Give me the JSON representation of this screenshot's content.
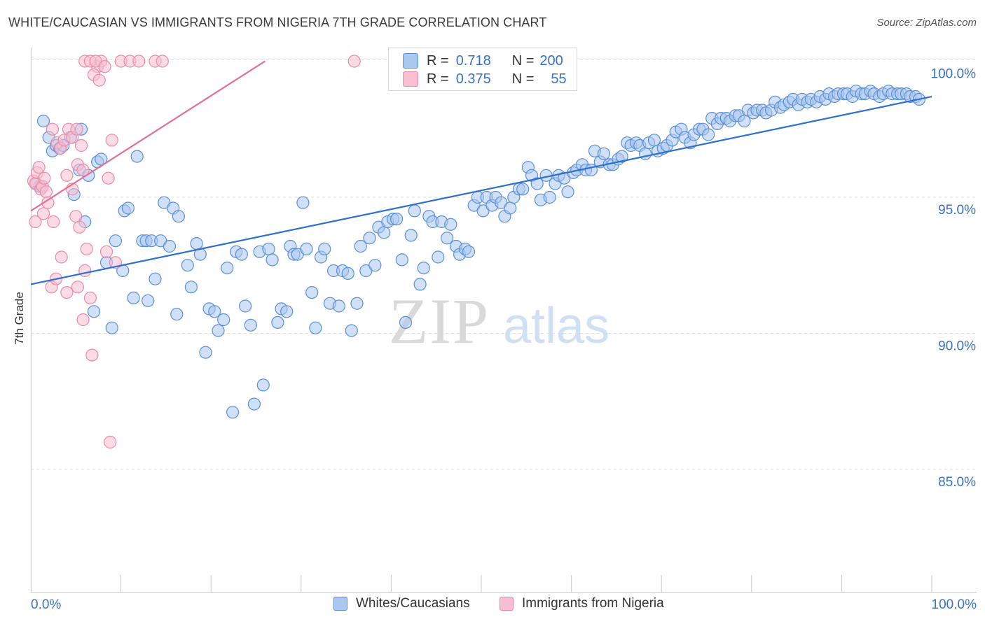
{
  "header": {
    "title": "WHITE/CAUCASIAN VS IMMIGRANTS FROM NIGERIA 7TH GRADE CORRELATION CHART",
    "source": "Source: ZipAtlas.com"
  },
  "watermark": {
    "zip": "ZIP",
    "atlas": "atlas"
  },
  "legend": {
    "r_label": "R =",
    "n_label": "N =",
    "series": [
      {
        "name": "Whites/Caucasians",
        "r": "0.718",
        "n": "200",
        "color": "#a9c7ef",
        "stroke": "#5a8fd8"
      },
      {
        "name": "Immigrants from Nigeria",
        "r": "0.375",
        "n": "55",
        "color": "#f8bfd0",
        "stroke": "#e98aa8"
      }
    ]
  },
  "chart_data": {
    "type": "scatter",
    "title": "WHITE/CAUCASIAN VS IMMIGRANTS FROM NIGERIA 7TH GRADE CORRELATION CHART",
    "xlabel": "",
    "ylabel": "7th Grade",
    "xlim": [
      0,
      100
    ],
    "ylim": [
      80.5,
      100.5
    ],
    "x_tick_labels": [
      "0.0%",
      "100.0%"
    ],
    "y_ticks": [
      {
        "value": 100,
        "label": "100.0%"
      },
      {
        "value": 95,
        "label": "95.0%"
      },
      {
        "value": 90,
        "label": "90.0%"
      },
      {
        "value": 85,
        "label": "85.0%"
      }
    ],
    "grid": true,
    "legend_position": "top-center",
    "series": [
      {
        "name": "Whites/Caucasians",
        "color": "#a9c7ef",
        "stroke": "#5a8fd8",
        "trend": {
          "x": [
            0,
            100
          ],
          "y": [
            91.8,
            98.7
          ],
          "color": "#2f6fce"
        },
        "points": [
          [
            1.4,
            97.8
          ],
          [
            2.0,
            97.2
          ],
          [
            2.4,
            96.7
          ],
          [
            2.8,
            96.9
          ],
          [
            3.2,
            96.8
          ],
          [
            3.6,
            96.9
          ],
          [
            4.4,
            97.2
          ],
          [
            5.6,
            97.5
          ],
          [
            4.8,
            95.1
          ],
          [
            5.4,
            96.0
          ],
          [
            6.4,
            95.8
          ],
          [
            7.4,
            96.3
          ],
          [
            7.8,
            96.4
          ],
          [
            11.8,
            96.5
          ],
          [
            6.0,
            94.1
          ],
          [
            8.4,
            92.6
          ],
          [
            9.4,
            93.4
          ],
          [
            10.4,
            94.5
          ],
          [
            10.8,
            94.6
          ],
          [
            10.2,
            92.3
          ],
          [
            11.4,
            91.3
          ],
          [
            9.0,
            90.2
          ],
          [
            12.4,
            93.4
          ],
          [
            12.8,
            93.4
          ],
          [
            13.4,
            93.4
          ],
          [
            13.8,
            92.0
          ],
          [
            14.4,
            93.4
          ],
          [
            14.8,
            94.8
          ],
          [
            15.4,
            93.2
          ],
          [
            15.8,
            94.6
          ],
          [
            16.4,
            94.3
          ],
          [
            16.2,
            90.7
          ],
          [
            17.4,
            92.5
          ],
          [
            17.8,
            91.7
          ],
          [
            18.4,
            93.3
          ],
          [
            18.8,
            92.9
          ],
          [
            19.4,
            89.3
          ],
          [
            19.8,
            90.9
          ],
          [
            20.4,
            90.8
          ],
          [
            20.8,
            90.1
          ],
          [
            21.4,
            90.5
          ],
          [
            21.8,
            92.4
          ],
          [
            22.4,
            87.1
          ],
          [
            22.8,
            93.0
          ],
          [
            23.4,
            92.9
          ],
          [
            23.8,
            91.0
          ],
          [
            24.4,
            90.3
          ],
          [
            24.8,
            87.4
          ],
          [
            25.4,
            93.0
          ],
          [
            25.8,
            88.1
          ],
          [
            26.4,
            93.1
          ],
          [
            26.8,
            92.7
          ],
          [
            27.4,
            90.4
          ],
          [
            27.8,
            90.9
          ],
          [
            28.4,
            90.8
          ],
          [
            28.8,
            93.2
          ],
          [
            29.2,
            92.9
          ],
          [
            29.6,
            92.9
          ],
          [
            30.2,
            94.8
          ],
          [
            30.6,
            93.1
          ],
          [
            31.2,
            91.5
          ],
          [
            31.6,
            90.2
          ],
          [
            32.2,
            92.8
          ],
          [
            32.6,
            93.1
          ],
          [
            33.2,
            91.1
          ],
          [
            33.6,
            92.3
          ],
          [
            34.2,
            91.0
          ],
          [
            34.6,
            92.3
          ],
          [
            35.2,
            92.2
          ],
          [
            35.6,
            90.1
          ],
          [
            36.2,
            91.1
          ],
          [
            36.6,
            93.2
          ],
          [
            37.2,
            92.3
          ],
          [
            37.6,
            93.5
          ],
          [
            38.2,
            92.5
          ],
          [
            38.6,
            93.9
          ],
          [
            39.2,
            93.7
          ],
          [
            39.6,
            94.1
          ],
          [
            40.2,
            94.2
          ],
          [
            40.6,
            94.2
          ],
          [
            41.2,
            92.7
          ],
          [
            41.6,
            90.4
          ],
          [
            42.2,
            93.6
          ],
          [
            42.6,
            94.5
          ],
          [
            43.2,
            91.8
          ],
          [
            43.6,
            92.4
          ],
          [
            44.2,
            94.3
          ],
          [
            44.6,
            94.1
          ],
          [
            45.2,
            92.8
          ],
          [
            45.6,
            94.1
          ],
          [
            46.2,
            93.5
          ],
          [
            46.6,
            94.0
          ],
          [
            47.2,
            93.2
          ],
          [
            47.6,
            92.9
          ],
          [
            48.2,
            93.1
          ],
          [
            48.6,
            93.0
          ],
          [
            49.2,
            94.7
          ],
          [
            49.6,
            95.0
          ],
          [
            50.2,
            94.5
          ],
          [
            50.6,
            95.0
          ],
          [
            51.2,
            94.7
          ],
          [
            51.6,
            95.0
          ],
          [
            52.2,
            94.8
          ],
          [
            52.6,
            94.3
          ],
          [
            53.2,
            94.6
          ],
          [
            53.6,
            95.0
          ],
          [
            54.2,
            95.3
          ],
          [
            54.6,
            95.3
          ],
          [
            55.2,
            96.1
          ],
          [
            55.6,
            95.8
          ],
          [
            56.2,
            95.5
          ],
          [
            56.6,
            94.9
          ],
          [
            57.2,
            95.8
          ],
          [
            57.6,
            95.0
          ],
          [
            58.2,
            95.5
          ],
          [
            58.6,
            95.8
          ],
          [
            59.2,
            95.7
          ],
          [
            59.6,
            95.2
          ],
          [
            60.2,
            95.9
          ],
          [
            60.6,
            96.0
          ],
          [
            61.2,
            96.2
          ],
          [
            61.6,
            96.0
          ],
          [
            62.2,
            96.0
          ],
          [
            62.6,
            96.7
          ],
          [
            63.2,
            96.3
          ],
          [
            63.6,
            96.6
          ],
          [
            64.2,
            96.2
          ],
          [
            64.6,
            96.2
          ],
          [
            65.2,
            96.4
          ],
          [
            65.6,
            96.5
          ],
          [
            66.2,
            97.0
          ],
          [
            66.6,
            96.9
          ],
          [
            67.2,
            97.0
          ],
          [
            67.6,
            96.9
          ],
          [
            68.2,
            96.6
          ],
          [
            68.6,
            97.0
          ],
          [
            69.2,
            97.1
          ],
          [
            69.6,
            96.7
          ],
          [
            70.2,
            96.8
          ],
          [
            70.6,
            96.9
          ],
          [
            71.2,
            97.1
          ],
          [
            71.6,
            97.4
          ],
          [
            72.2,
            97.5
          ],
          [
            72.6,
            97.2
          ],
          [
            73.2,
            97.0
          ],
          [
            73.6,
            97.3
          ],
          [
            74.2,
            97.5
          ],
          [
            74.6,
            97.5
          ],
          [
            75.2,
            97.3
          ],
          [
            75.6,
            97.9
          ],
          [
            76.2,
            97.7
          ],
          [
            76.6,
            97.9
          ],
          [
            77.2,
            97.9
          ],
          [
            77.6,
            97.8
          ],
          [
            78.2,
            98.0
          ],
          [
            78.6,
            98.0
          ],
          [
            79.2,
            97.8
          ],
          [
            79.6,
            98.2
          ],
          [
            80.2,
            98.1
          ],
          [
            80.6,
            98.2
          ],
          [
            81.2,
            98.2
          ],
          [
            81.6,
            98.1
          ],
          [
            82.2,
            98.2
          ],
          [
            82.6,
            98.5
          ],
          [
            83.2,
            98.3
          ],
          [
            83.6,
            98.4
          ],
          [
            84.2,
            98.5
          ],
          [
            84.6,
            98.6
          ],
          [
            85.2,
            98.4
          ],
          [
            85.6,
            98.6
          ],
          [
            86.2,
            98.5
          ],
          [
            86.6,
            98.6
          ],
          [
            87.2,
            98.5
          ],
          [
            87.6,
            98.7
          ],
          [
            88.2,
            98.6
          ],
          [
            88.6,
            98.8
          ],
          [
            89.2,
            98.7
          ],
          [
            89.6,
            98.8
          ],
          [
            90.2,
            98.8
          ],
          [
            90.6,
            98.8
          ],
          [
            91.2,
            98.7
          ],
          [
            91.6,
            98.9
          ],
          [
            92.2,
            98.8
          ],
          [
            92.6,
            98.8
          ],
          [
            93.2,
            98.9
          ],
          [
            93.6,
            98.8
          ],
          [
            94.2,
            98.7
          ],
          [
            94.6,
            98.8
          ],
          [
            95.2,
            98.9
          ],
          [
            95.6,
            98.8
          ],
          [
            96.2,
            98.8
          ],
          [
            96.6,
            98.8
          ],
          [
            97.2,
            98.8
          ],
          [
            97.6,
            98.7
          ],
          [
            98.2,
            98.7
          ],
          [
            98.6,
            98.6
          ],
          [
            0.6,
            95.5
          ],
          [
            1.0,
            95.4
          ],
          [
            7.0,
            90.8
          ],
          [
            13.0,
            91.2
          ]
        ]
      },
      {
        "name": "Immigrants from Nigeria",
        "color": "#f8bfd0",
        "stroke": "#e98aa8",
        "trend": {
          "x": [
            0,
            26
          ],
          "y": [
            94.5,
            100.0
          ],
          "color": "#e0709a"
        },
        "points": [
          [
            0.3,
            95.6
          ],
          [
            0.5,
            95.5
          ],
          [
            0.7,
            95.9
          ],
          [
            0.9,
            96.1
          ],
          [
            1.1,
            95.3
          ],
          [
            1.3,
            95.4
          ],
          [
            1.5,
            95.7
          ],
          [
            1.7,
            95.2
          ],
          [
            0.5,
            94.1
          ],
          [
            1.4,
            94.4
          ],
          [
            1.9,
            94.8
          ],
          [
            2.5,
            94.1
          ],
          [
            2.3,
            91.7
          ],
          [
            2.8,
            92.0
          ],
          [
            3.4,
            92.8
          ],
          [
            4.0,
            91.5
          ],
          [
            2.4,
            97.5
          ],
          [
            2.9,
            97.0
          ],
          [
            3.3,
            96.8
          ],
          [
            3.7,
            97.1
          ],
          [
            4.2,
            97.5
          ],
          [
            4.6,
            97.2
          ],
          [
            5.1,
            97.5
          ],
          [
            5.6,
            96.9
          ],
          [
            4.0,
            95.8
          ],
          [
            4.6,
            95.3
          ],
          [
            5.2,
            96.2
          ],
          [
            5.8,
            96.0
          ],
          [
            5.0,
            94.3
          ],
          [
            5.4,
            93.9
          ],
          [
            6.2,
            93.1
          ],
          [
            6.0,
            92.3
          ],
          [
            5.2,
            91.7
          ],
          [
            6.6,
            91.3
          ],
          [
            5.8,
            90.5
          ],
          [
            6.8,
            89.2
          ],
          [
            7.4,
            99.8
          ],
          [
            7.8,
            100.0
          ],
          [
            7.0,
            99.5
          ],
          [
            7.6,
            99.3
          ],
          [
            6.0,
            100.0
          ],
          [
            6.6,
            100.0
          ],
          [
            7.2,
            100.0
          ],
          [
            8.2,
            99.8
          ],
          [
            8.6,
            95.7
          ],
          [
            9.0,
            97.1
          ],
          [
            8.4,
            93.0
          ],
          [
            9.4,
            92.6
          ],
          [
            8.8,
            86.0
          ],
          [
            10.0,
            100.0
          ],
          [
            11.0,
            100.0
          ],
          [
            12.0,
            100.0
          ],
          [
            13.8,
            100.0
          ],
          [
            14.6,
            100.0
          ],
          [
            35.9,
            100.0
          ]
        ]
      }
    ]
  }
}
